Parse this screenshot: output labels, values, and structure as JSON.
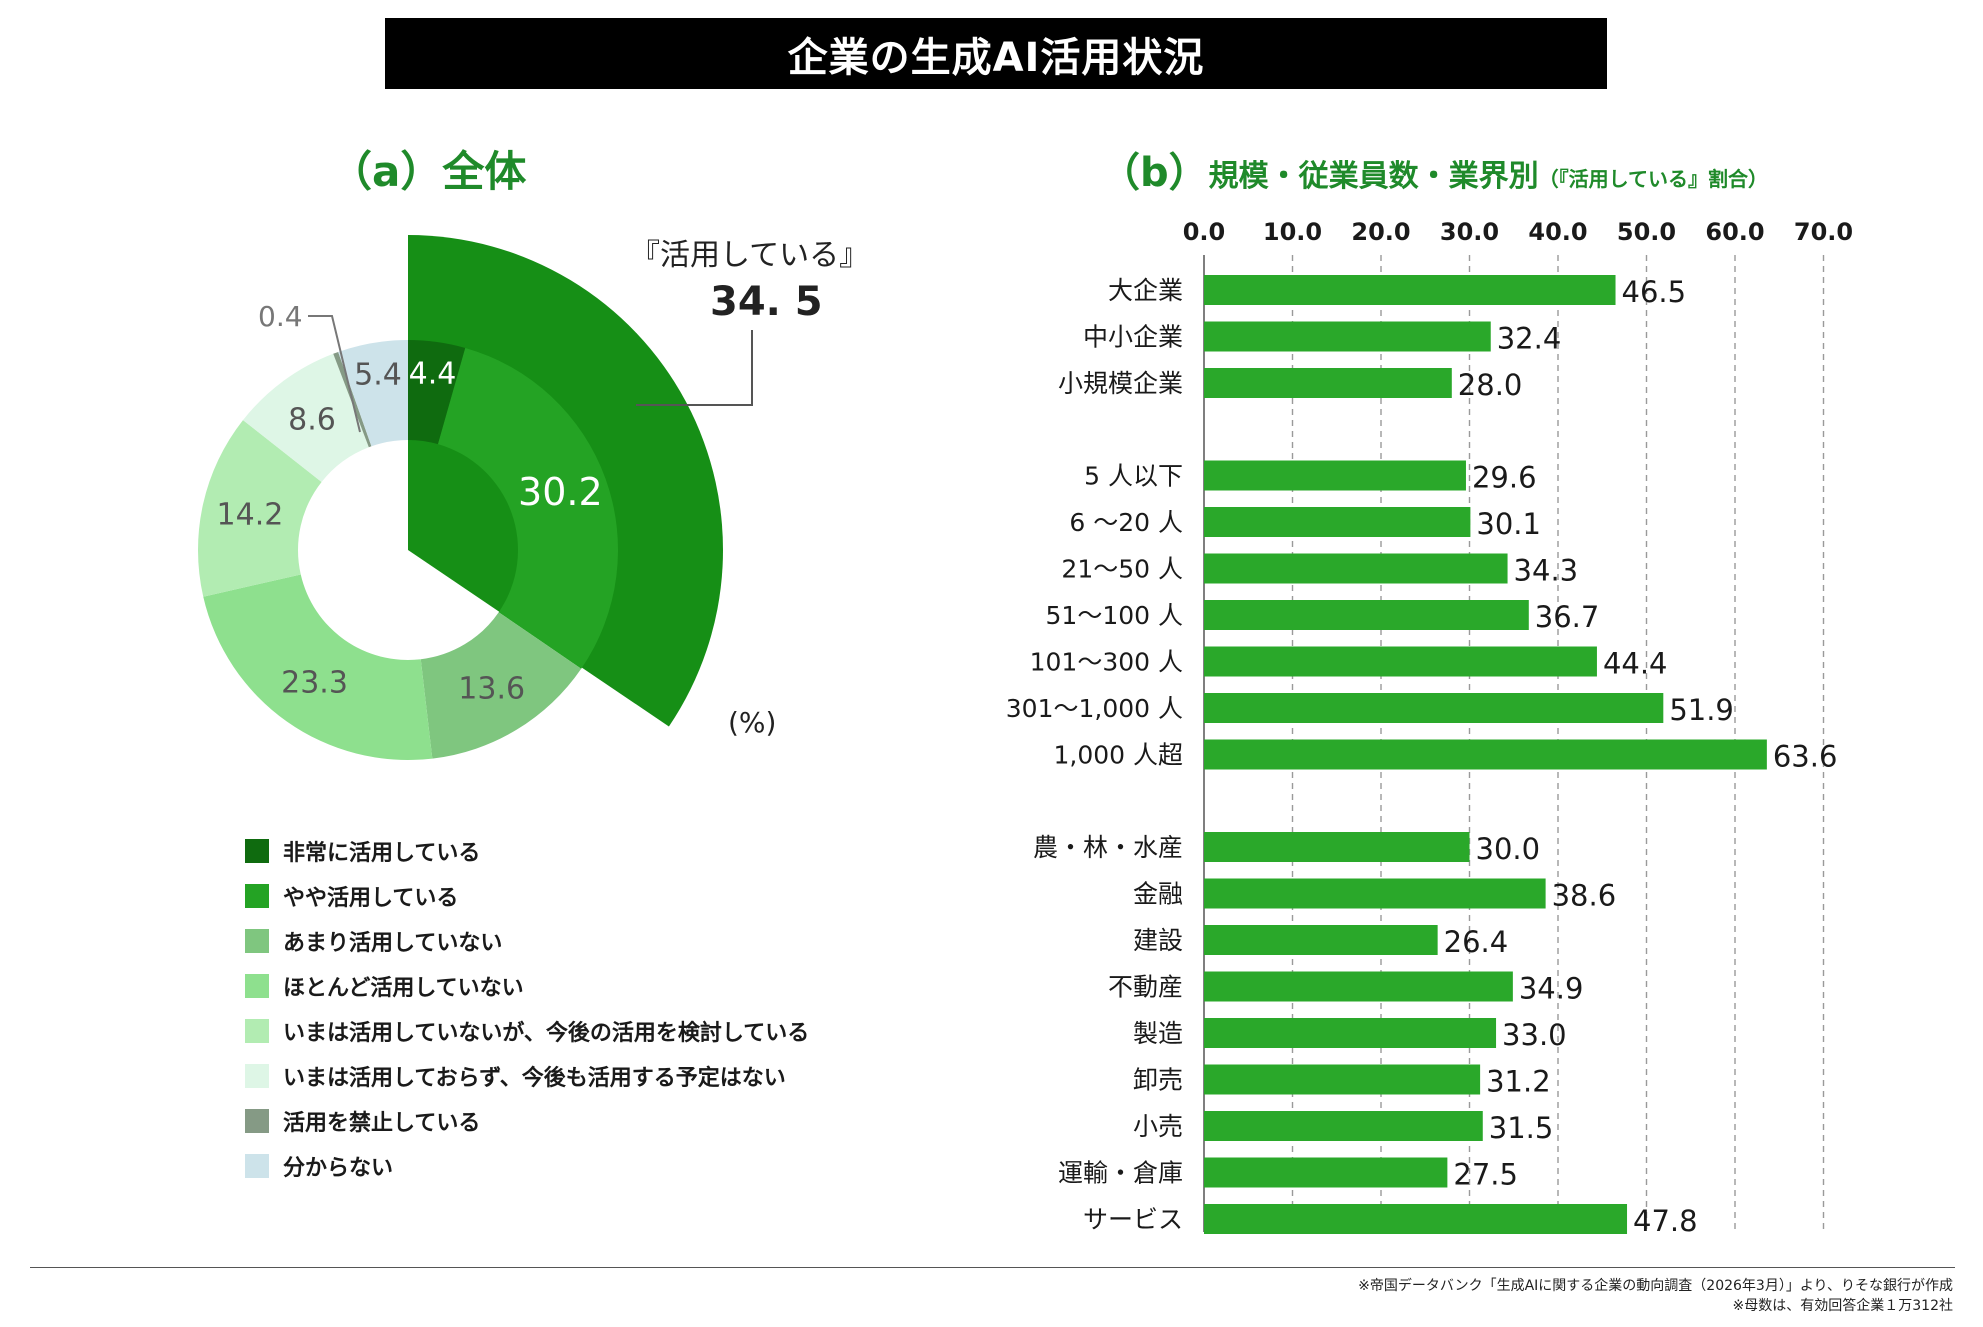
{
  "title": "企業の生成AI活用状況",
  "panel_a": {
    "letter": "（a）",
    "title": "全体",
    "callout_label": "『活用している』",
    "callout_value": "34. 5",
    "unit": "(%)",
    "small_label": "0.4"
  },
  "panel_b": {
    "letter": "（b）",
    "title": "規模・従業員数・業界別",
    "note": "（『活用している』割合）"
  },
  "legend": [
    {
      "label": "非常に活用している",
      "color": "#0f6b0f"
    },
    {
      "label": "やや活用している",
      "color": "#24a324"
    },
    {
      "label": "あまり活用していない",
      "color": "#7fc67f"
    },
    {
      "label": "ほとんど活用していない",
      "color": "#8ee08e"
    },
    {
      "label": "いまは活用していないが、今後の活用を検討している",
      "color": "#b2ecb2"
    },
    {
      "label": "いまは活用しておらず、今後も活用する予定はない",
      "color": "#def6e6"
    },
    {
      "label": "活用を禁止している",
      "color": "#859a85"
    },
    {
      "label": "分からない",
      "color": "#cde3ea"
    }
  ],
  "chart_data": [
    {
      "type": "pie",
      "variant": "donut",
      "unit": "%",
      "slices": [
        {
          "label": "非常に活用している",
          "value": 4.4,
          "color": "#0f6b0f",
          "value_text": "4.4"
        },
        {
          "label": "やや活用している",
          "value": 30.2,
          "color": "#24a324",
          "value_text": "30.2"
        },
        {
          "label": "あまり活用していない",
          "value": 13.6,
          "color": "#7fc67f",
          "value_text": "13.6"
        },
        {
          "label": "ほとんど活用していない",
          "value": 23.3,
          "color": "#8ee08e",
          "value_text": "23.3"
        },
        {
          "label": "いまは活用していないが、今後の活用を検討している",
          "value": 14.2,
          "color": "#b2ecb2",
          "value_text": "14.2"
        },
        {
          "label": "いまは活用しておらず、今後も活用する予定はない",
          "value": 8.6,
          "color": "#def6e6",
          "value_text": "8.6"
        },
        {
          "label": "活用を禁止している",
          "value": 0.4,
          "color": "#859a85",
          "value_text": ""
        },
        {
          "label": "分からない",
          "value": 5.4,
          "color": "#cde3ea",
          "value_text": "5.4"
        }
      ],
      "highlight": {
        "label": "『活用している』",
        "value": 34.5,
        "color": "#168f16"
      }
    },
    {
      "type": "bar",
      "orientation": "horizontal",
      "xlim": [
        0,
        70
      ],
      "ticks": [
        "0.0",
        "10.0",
        "20.0",
        "30.0",
        "40.0",
        "50.0",
        "60.0",
        "70.0"
      ],
      "grid": true,
      "bar_color": "#2aa82a",
      "groups": [
        {
          "categories": [
            "大企業",
            "中小企業",
            "小規模企業"
          ],
          "values": [
            46.5,
            32.4,
            28.0
          ],
          "value_labels": [
            "46.5",
            "32.4",
            "28.0"
          ]
        },
        {
          "categories": [
            "5 人以下",
            "6 ～20 人",
            "21～50 人",
            "51～100 人",
            "101～300 人",
            "301～1,000 人",
            "1,000 人超"
          ],
          "values": [
            29.6,
            30.1,
            34.3,
            36.7,
            44.4,
            51.9,
            63.6
          ],
          "value_labels": [
            "29.6",
            "30.1",
            "34.3",
            "36.7",
            "44.4",
            "51.9",
            "63.6"
          ]
        },
        {
          "categories": [
            "農・林・水産",
            "金融",
            "建設",
            "不動産",
            "製造",
            "卸売",
            "小売",
            "運輸・倉庫",
            "サービス"
          ],
          "values": [
            30.0,
            38.6,
            26.4,
            34.9,
            33.0,
            31.2,
            31.5,
            27.5,
            47.8
          ],
          "value_labels": [
            "30.0",
            "38.6",
            "26.4",
            "34.9",
            "33.0",
            "31.2",
            "31.5",
            "27.5",
            "47.8"
          ]
        }
      ]
    }
  ],
  "footer": {
    "source": "※帝国データバンク「生成AIに関する企業の動向調査（2026年3月）」より、りそな銀行が作成",
    "note": "※母数は、有効回答企業１万312社"
  }
}
